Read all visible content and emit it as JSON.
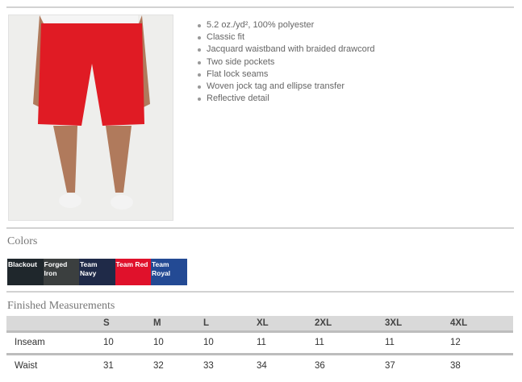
{
  "features": [
    "5.2 oz./yd², 100% polyester",
    "Classic fit",
    "Jacquard waistband with braided drawcord",
    "Two side pockets",
    "Flat lock seams",
    "Woven jock tag and ellipse transfer",
    "Reflective detail"
  ],
  "colors_title": "Colors",
  "colors": [
    {
      "name": "Blackout",
      "hex": "#1f272c"
    },
    {
      "name": "Forged Iron",
      "hex": "#3b3f3f"
    },
    {
      "name": "Team Navy",
      "hex": "#1f2a48"
    },
    {
      "name": "Team Red",
      "hex": "#e0112b"
    },
    {
      "name": "Team Royal",
      "hex": "#234a94"
    }
  ],
  "measurements": {
    "title": "Finished Measurements",
    "sizes": [
      "S",
      "M",
      "L",
      "XL",
      "2XL",
      "3XL",
      "4XL"
    ],
    "rows": [
      {
        "label": "Inseam",
        "values": [
          "10",
          "10",
          "10",
          "11",
          "11",
          "11",
          "12"
        ]
      },
      {
        "label": "Waist",
        "values": [
          "31",
          "32",
          "33",
          "34",
          "36",
          "37",
          "38"
        ]
      }
    ]
  }
}
